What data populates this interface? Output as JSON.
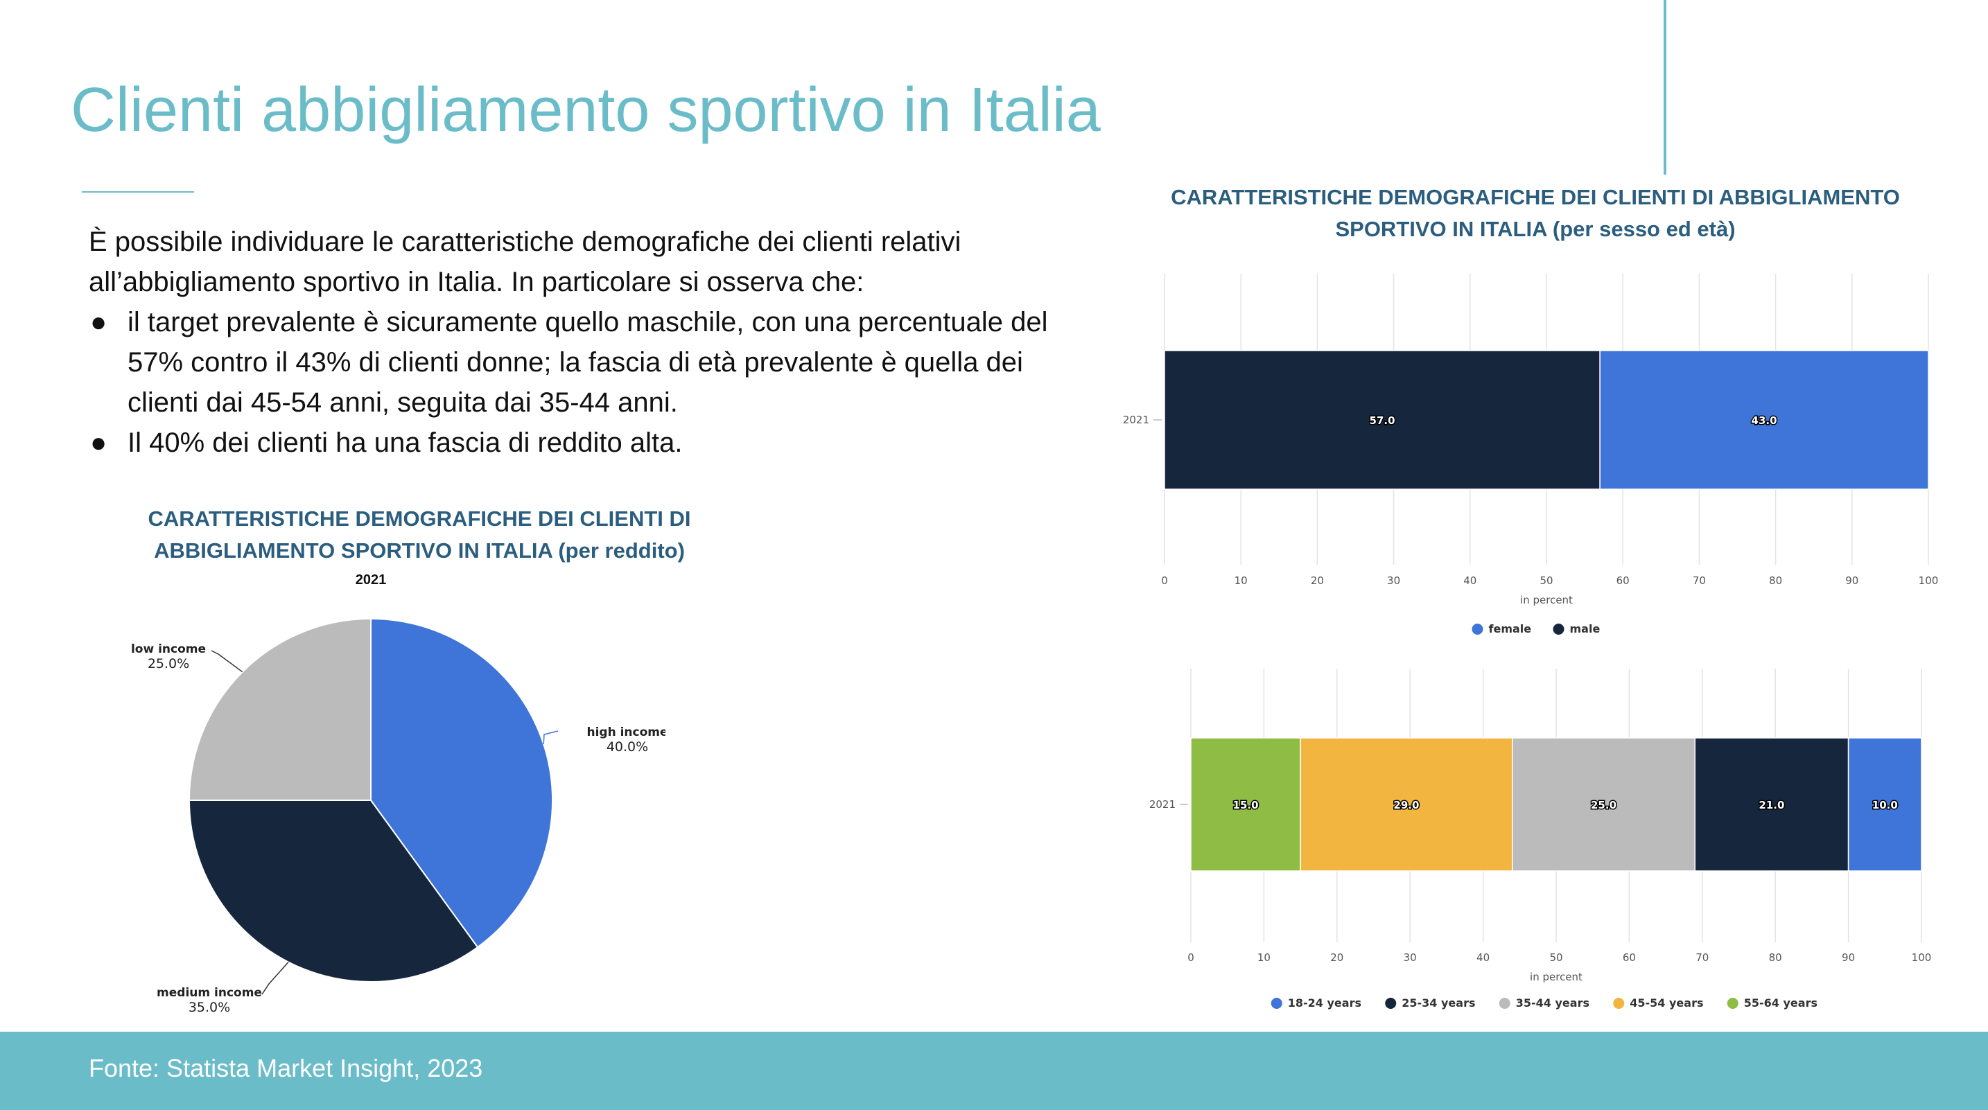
{
  "title": "Clienti abbigliamento sportivo in Italia",
  "intro": {
    "text": "È possibile individuare le caratteristiche demografiche dei clienti relativi all’abbigliamento sportivo in Italia. In particolare si osserva che:",
    "bullets": [
      "il target prevalente è sicuramente quello maschile, con una percentuale del 57% contro il 43% di clienti donne; la fascia di età prevalente è quella dei clienti dai 45-54 anni, seguita dai 35-44 anni.",
      "Il 40% dei clienti ha una fascia di reddito alta."
    ]
  },
  "pie_title": "CARATTERISTICHE DEMOGRAFICHE DEI CLIENTI DI ABBIGLIAMENTO SPORTIVO IN ITALIA (per reddito)",
  "bar_title": "CARATTERISTICHE DEMOGRAFICHE DEI CLIENTI DI ABBIGLIAMENTO SPORTIVO IN ITALIA (per sesso ed età)",
  "footer": {
    "source": "Fonte: Statista Market Insight, 2023"
  },
  "bullet_symbol": "●",
  "colors": {
    "accent": "#6abcc8",
    "heading": "#2b5d7f"
  },
  "chart_data": [
    {
      "type": "pie",
      "title": "2021",
      "slices": [
        {
          "label": "high income",
          "value": 40.0,
          "display": "40.0%",
          "color": "#3f75d8"
        },
        {
          "label": "medium income",
          "value": 35.0,
          "display": "35.0%",
          "color": "#16263d"
        },
        {
          "label": "low income",
          "value": 25.0,
          "display": "25.0%",
          "color": "#bbbbbb"
        }
      ]
    },
    {
      "type": "bar",
      "orientation": "horizontal",
      "stacked": true,
      "categories": [
        "2021"
      ],
      "xlabel": "in percent",
      "xlim": [
        0,
        100
      ],
      "xticks": [
        0,
        10,
        20,
        30,
        40,
        50,
        60,
        70,
        80,
        90,
        100
      ],
      "grid": true,
      "legend": "bottom",
      "series": [
        {
          "name": "male",
          "values": [
            57.0
          ],
          "label": "57.0",
          "color": "#16263d"
        },
        {
          "name": "female",
          "values": [
            43.0
          ],
          "label": "43.0",
          "color": "#3f75d8"
        }
      ],
      "legend_order": [
        "female",
        "male"
      ]
    },
    {
      "type": "bar",
      "orientation": "horizontal",
      "stacked": true,
      "categories": [
        "2021"
      ],
      "xlabel": "in percent",
      "xlim": [
        0,
        100
      ],
      "xticks": [
        0,
        10,
        20,
        30,
        40,
        50,
        60,
        70,
        80,
        90,
        100
      ],
      "grid": true,
      "legend": "bottom",
      "series": [
        {
          "name": "55-64 years",
          "values": [
            15.0
          ],
          "label": "15.0",
          "color": "#8fbc45"
        },
        {
          "name": "45-54 years",
          "values": [
            29.0
          ],
          "label": "29.0",
          "color": "#f2b53f"
        },
        {
          "name": "35-44 years",
          "values": [
            25.0
          ],
          "label": "25.0",
          "color": "#bbbbbb"
        },
        {
          "name": "25-34 years",
          "values": [
            21.0
          ],
          "label": "21.0",
          "color": "#16263d"
        },
        {
          "name": "18-24 years",
          "values": [
            10.0
          ],
          "label": "10.0",
          "color": "#3f75d8"
        }
      ],
      "legend_order": [
        "18-24 years",
        "25-34 years",
        "35-44 years",
        "45-54 years",
        "55-64 years"
      ]
    }
  ]
}
